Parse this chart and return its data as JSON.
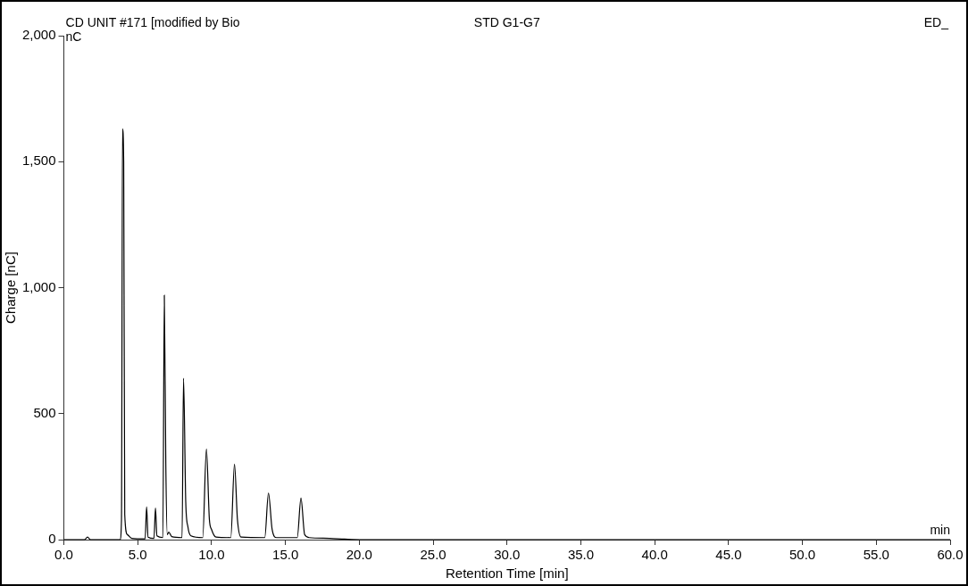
{
  "chart_data": {
    "type": "line",
    "title": "STD G1-G7",
    "xlabel": "Retention Time [min]",
    "ylabel": "Charge [nC]",
    "annotations": [
      "CD UNIT #171 [modified by Bio",
      "ED_",
      "nC",
      "min"
    ],
    "x": [
      0,
      1.4,
      1.6,
      1.8,
      3.8,
      3.9,
      3.97,
      4.05,
      4.12,
      4.3,
      4.6,
      5.5,
      5.6,
      5.7,
      6.1,
      6.2,
      6.3,
      6.7,
      6.8,
      6.9,
      7.0,
      7.1,
      7.3,
      8.0,
      8.1,
      8.25,
      8.4,
      8.6,
      9.4,
      9.65,
      9.85,
      10.0,
      10.3,
      11.3,
      11.55,
      11.75,
      12.0,
      13.6,
      13.85,
      14.1,
      14.4,
      15.8,
      16.05,
      16.3,
      16.6,
      18,
      19,
      20,
      60
    ],
    "series": [
      {
        "color": "#000000",
        "values": [
          0,
          0,
          10,
          0,
          0,
          80,
          1630,
          1500,
          100,
          20,
          5,
          3,
          130,
          10,
          5,
          125,
          15,
          8,
          970,
          300,
          20,
          30,
          12,
          8,
          640,
          150,
          50,
          15,
          8,
          360,
          80,
          40,
          10,
          8,
          300,
          80,
          10,
          8,
          185,
          40,
          8,
          8,
          165,
          20,
          8,
          5,
          2,
          0,
          0
        ]
      }
    ],
    "xlim": [
      0,
      60
    ],
    "xticks": [
      {
        "value": 0,
        "label": "0.0"
      },
      {
        "value": 5,
        "label": "5.0"
      },
      {
        "value": 10,
        "label": "10.0"
      },
      {
        "value": 15,
        "label": "15.0"
      },
      {
        "value": 20,
        "label": "20.0"
      },
      {
        "value": 25,
        "label": "25.0"
      },
      {
        "value": 30,
        "label": "30.0"
      },
      {
        "value": 35,
        "label": "35.0"
      },
      {
        "value": 40,
        "label": "40.0"
      },
      {
        "value": 45,
        "label": "45.0"
      },
      {
        "value": 50,
        "label": "50.0"
      },
      {
        "value": 55,
        "label": "55.0"
      },
      {
        "value": 60,
        "label": "60.0"
      }
    ],
    "ylim": [
      0,
      2000
    ],
    "yticks": [
      0,
      500,
      {
        "value": 1000,
        "label": "1,000"
      },
      {
        "value": 1500,
        "label": "1,500"
      },
      {
        "value": 2000,
        "label": "2,000"
      }
    ],
    "grid": false,
    "legend": false,
    "marker": "none",
    "line_style": "solid"
  }
}
